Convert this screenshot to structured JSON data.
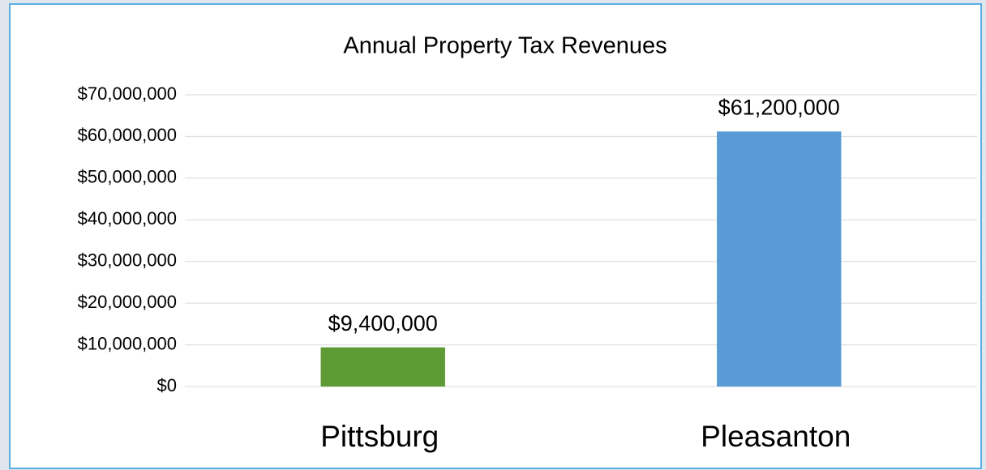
{
  "chart_data": {
    "type": "bar",
    "title": "Annual Property Tax Revenues",
    "categories": [
      "Pittsburg",
      "Pleasanton"
    ],
    "values": [
      9400000,
      61200000
    ],
    "value_labels": [
      "$9,400,000",
      "$61,200,000"
    ],
    "colors": [
      "#5e9a35",
      "#5b9bd5"
    ],
    "ylim": [
      0,
      70000000
    ],
    "yticks": [
      {
        "value": 0,
        "label": "$0"
      },
      {
        "value": 10000000,
        "label": "$10,000,000"
      },
      {
        "value": 20000000,
        "label": "$20,000,000"
      },
      {
        "value": 30000000,
        "label": "$30,000,000"
      },
      {
        "value": 40000000,
        "label": "$40,000,000"
      },
      {
        "value": 50000000,
        "label": "$50,000,000"
      },
      {
        "value": 60000000,
        "label": "$60,000,000"
      },
      {
        "value": 70000000,
        "label": "$70,000,000"
      }
    ],
    "grid": true
  }
}
